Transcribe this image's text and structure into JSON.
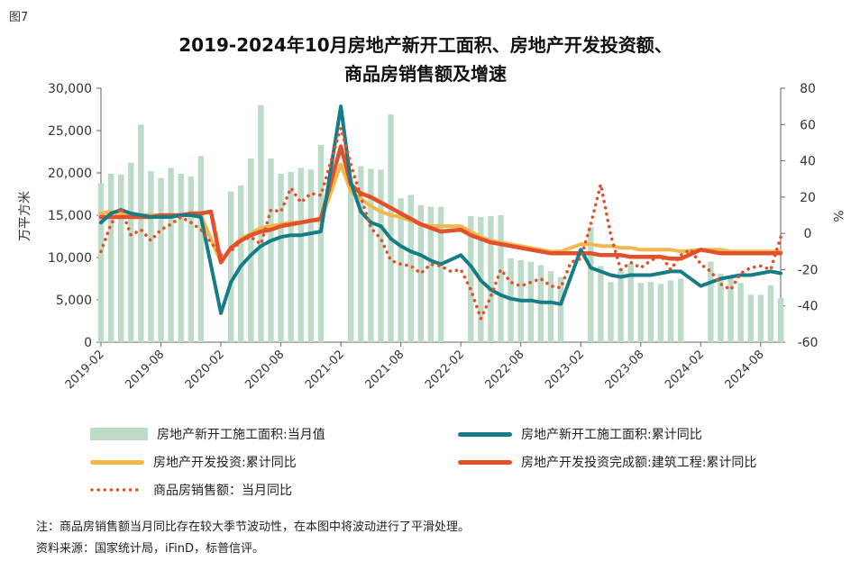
{
  "figure_label": "图7",
  "title_line1": "2019-2024年10月房地产新开工面积、房地产开发投资额、",
  "title_line2": "商品房销售额及增速",
  "note": "注：商品房销售额当月同比存在较大季节波动性，在本图中将波动进行了平滑处理。",
  "source": "资料来源：国家统计局，iFinD，标普信评。",
  "colors": {
    "bar": "#bcdcc8",
    "new_start_cum": "#167c86",
    "investment_cum": "#f2b84b",
    "construction_cum": "#e2512b",
    "sales_monthly": "#e2512b"
  },
  "chart_data": {
    "type": "bar+line",
    "ylabel_left": "万平方米",
    "ylabel_right": "%",
    "ylim_left": [
      0,
      30000
    ],
    "ylim_right": [
      -60,
      80
    ],
    "yticks_left": [
      "0",
      "5,000",
      "10,000",
      "15,000",
      "20,000",
      "25,000",
      "30,000"
    ],
    "yticks_right": [
      "-60",
      "-40",
      "-20",
      "0",
      "20",
      "40",
      "60",
      "80"
    ],
    "xticks": [
      "2019-02",
      "2019-08",
      "2020-02",
      "2020-08",
      "2021-02",
      "2021-08",
      "2022-02",
      "2022-08",
      "2023-02",
      "2023-08",
      "2024-02",
      "2024-08"
    ],
    "months": [
      "2019-02",
      "2019-03",
      "2019-04",
      "2019-05",
      "2019-06",
      "2019-07",
      "2019-08",
      "2019-09",
      "2019-10",
      "2019-11",
      "2019-12",
      "2020-01",
      "2020-02",
      "2020-03",
      "2020-04",
      "2020-05",
      "2020-06",
      "2020-07",
      "2020-08",
      "2020-09",
      "2020-10",
      "2020-11",
      "2020-12",
      "2021-01",
      "2021-02",
      "2021-03",
      "2021-04",
      "2021-05",
      "2021-06",
      "2021-07",
      "2021-08",
      "2021-09",
      "2021-10",
      "2021-11",
      "2021-12",
      "2022-01",
      "2022-02",
      "2022-03",
      "2022-04",
      "2022-05",
      "2022-06",
      "2022-07",
      "2022-08",
      "2022-09",
      "2022-10",
      "2022-11",
      "2022-12",
      "2023-01",
      "2023-02",
      "2023-03",
      "2023-04",
      "2023-05",
      "2023-06",
      "2023-07",
      "2023-08",
      "2023-09",
      "2023-10",
      "2023-11",
      "2023-12",
      "2024-01",
      "2024-02",
      "2024-03",
      "2024-04",
      "2024-05",
      "2024-06",
      "2024-07",
      "2024-08",
      "2024-09",
      "2024-10"
    ],
    "series": [
      {
        "name": "房地产新开工施工面积:当月值",
        "kind": "bar",
        "axis": "left",
        "values": [
          18800,
          19900,
          19800,
          21200,
          25700,
          20200,
          19400,
          20600,
          19900,
          19600,
          22000,
          null,
          null,
          17800,
          18500,
          21700,
          28000,
          21700,
          19900,
          20100,
          20600,
          20400,
          23300,
          null,
          null,
          19500,
          20800,
          20500,
          20400,
          26900,
          17000,
          17400,
          16200,
          16000,
          16000,
          null,
          null,
          14900,
          14800,
          14900,
          15000,
          9900,
          9700,
          9500,
          9100,
          8400,
          7700,
          null,
          null,
          13600,
          9000,
          7100,
          8700,
          9300,
          7000,
          7100,
          6900,
          7300,
          7500,
          null,
          null,
          9500,
          8100,
          7900,
          7000,
          5600,
          5600,
          6700,
          5200
        ]
      },
      {
        "name": "房地产新开工施工面积:累计同比",
        "kind": "line",
        "axis": "right",
        "values": [
          6,
          11,
          13,
          11,
          10,
          9,
          9,
          9,
          10,
          10,
          9,
          null,
          -44,
          -27,
          -18,
          -12,
          -7,
          -4,
          -2,
          -1,
          -1,
          0,
          1,
          null,
          70,
          28,
          12,
          6,
          4,
          -3,
          -7,
          -10,
          -12,
          -15,
          -17,
          null,
          -12,
          -18,
          -26,
          -31,
          -34,
          -36,
          -37,
          -37,
          -38,
          -38,
          -39,
          null,
          -9,
          -19,
          -21,
          -23,
          -24,
          -23,
          -23,
          -23,
          -22,
          -21,
          -21,
          null,
          -29,
          -27,
          -25,
          -24,
          -23,
          -23,
          -22,
          -21,
          -22
        ]
      },
      {
        "name": "房地产开发投资:累计同比",
        "kind": "line",
        "axis": "right",
        "values": [
          11,
          12,
          11,
          10,
          10,
          10,
          10,
          10,
          10,
          10,
          10,
          null,
          -16,
          -8,
          -3,
          0,
          3,
          4,
          5,
          6,
          6,
          7,
          7,
          null,
          38,
          23,
          19,
          15,
          12,
          10,
          9,
          7,
          5,
          4,
          4,
          null,
          4,
          1,
          -2,
          -4,
          -5,
          -6,
          -7,
          -8,
          -9,
          -10,
          -10,
          null,
          -6,
          -6,
          -7,
          -7,
          -8,
          -8,
          -9,
          -9,
          -9,
          -9,
          -10,
          null,
          -9,
          -9,
          -9,
          -10,
          -10,
          -10,
          -10,
          -10,
          -10
        ]
      },
      {
        "name": "房地产开发投资完成额:建筑工程:累计同比",
        "kind": "line",
        "axis": "right",
        "values": [
          9,
          9,
          9,
          9,
          9,
          9,
          10,
          10,
          10,
          11,
          11,
          12,
          -16,
          -8,
          -4,
          -1,
          1,
          2,
          4,
          5,
          6,
          7,
          8,
          null,
          48,
          27,
          22,
          20,
          17,
          14,
          11,
          8,
          5,
          3,
          1,
          null,
          2,
          -1,
          -3,
          -5,
          -6,
          -7,
          -8,
          -9,
          -10,
          -11,
          -11,
          null,
          -11,
          -11,
          -12,
          -12,
          -12,
          -13,
          -13,
          -13,
          -13,
          -14,
          -14,
          null,
          -9,
          -10,
          -11,
          -11,
          -11,
          -11,
          -11,
          -11,
          -11
        ]
      },
      {
        "name": "商品房销售额：当月同比",
        "kind": "dotted-line",
        "axis": "right",
        "values": [
          -10,
          5,
          14,
          -1,
          2,
          -4,
          2,
          5,
          9,
          6,
          2,
          null,
          -12,
          -10,
          -4,
          -2,
          -6,
          13,
          12,
          25,
          17,
          22,
          21,
          null,
          58,
          38,
          20,
          3,
          -3,
          -15,
          -17,
          -18,
          -22,
          -17,
          -18,
          -21,
          -20,
          -31,
          -47,
          -35,
          -20,
          -27,
          -29,
          -27,
          -25,
          -29,
          -30,
          -16,
          -14,
          5,
          27,
          -1,
          -20,
          -16,
          -19,
          -15,
          -12,
          -20,
          -12,
          -9,
          -17,
          -21,
          -28,
          -31,
          -22,
          -19,
          -18,
          -20,
          -2
        ]
      }
    ]
  }
}
